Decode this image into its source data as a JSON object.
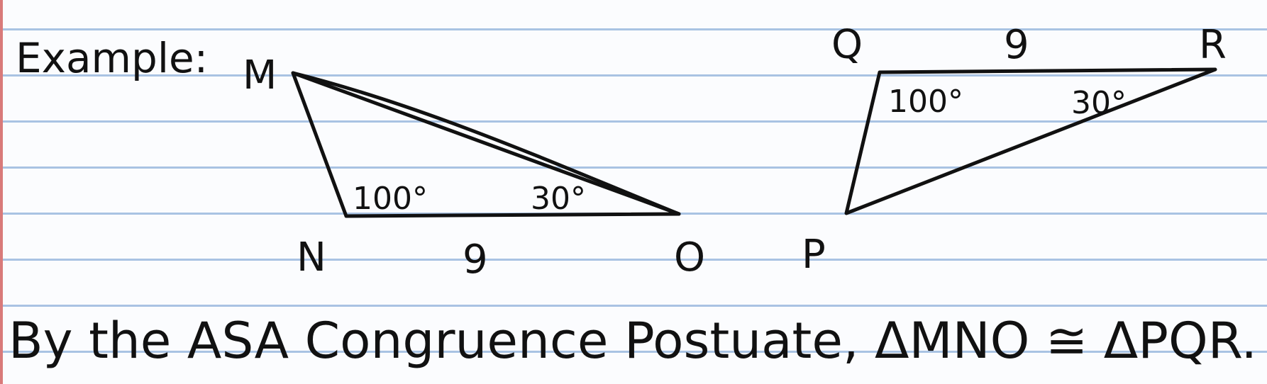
{
  "heading": "Example:",
  "triangle_mno": {
    "vertex_m": "M",
    "vertex_n": "N",
    "vertex_o": "O",
    "angle_n": "100°",
    "angle_o": "30°",
    "side_no": "9"
  },
  "triangle_pqr": {
    "vertex_p": "P",
    "vertex_q": "Q",
    "vertex_r": "R",
    "angle_q": "100°",
    "angle_r": "30°",
    "side_qr": "9"
  },
  "conclusion": "By the ASA Congruence Postuate, ΔMNO ≅ ΔPQR.",
  "colors": {
    "ink": "#111111",
    "rule": "#a9c3e3",
    "margin": "#d97a7a"
  }
}
